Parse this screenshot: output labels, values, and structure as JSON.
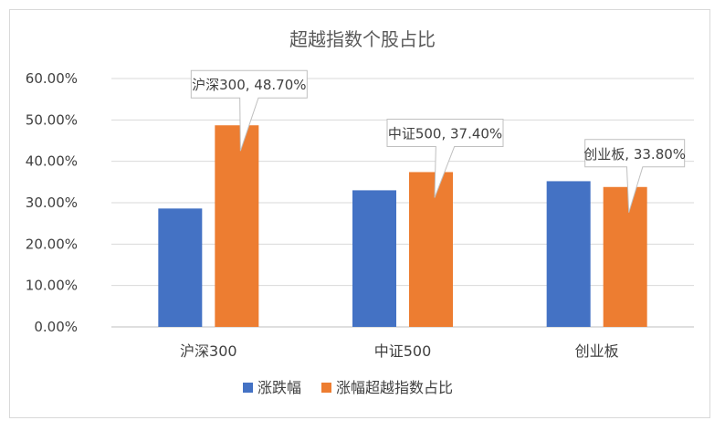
{
  "chart_data": {
    "type": "bar",
    "title": "超越指数个股占比",
    "categories": [
      "沪深300",
      "中证500",
      "创业板"
    ],
    "series": [
      {
        "name": "涨跌幅",
        "values": [
          28.6,
          33.0,
          35.2
        ],
        "color": "#4472C4"
      },
      {
        "name": "涨幅超越指数占比",
        "values": [
          48.7,
          37.4,
          33.8
        ],
        "color": "#ED7D31"
      }
    ],
    "ylim": [
      0,
      60
    ],
    "yticks": [
      "0.00%",
      "10.00%",
      "20.00%",
      "30.00%",
      "40.00%",
      "50.00%",
      "60.00%"
    ],
    "grid": true,
    "legend": "bottom",
    "annotations": [
      {
        "text": "沪深300, 48.70%",
        "category": "沪深300",
        "series": "涨幅超越指数占比"
      },
      {
        "text": "中证500, 37.40%",
        "category": "中证500",
        "series": "涨幅超越指数占比"
      },
      {
        "text": "创业板, 33.80%",
        "category": "创业板",
        "series": "涨幅超越指数占比"
      }
    ]
  }
}
